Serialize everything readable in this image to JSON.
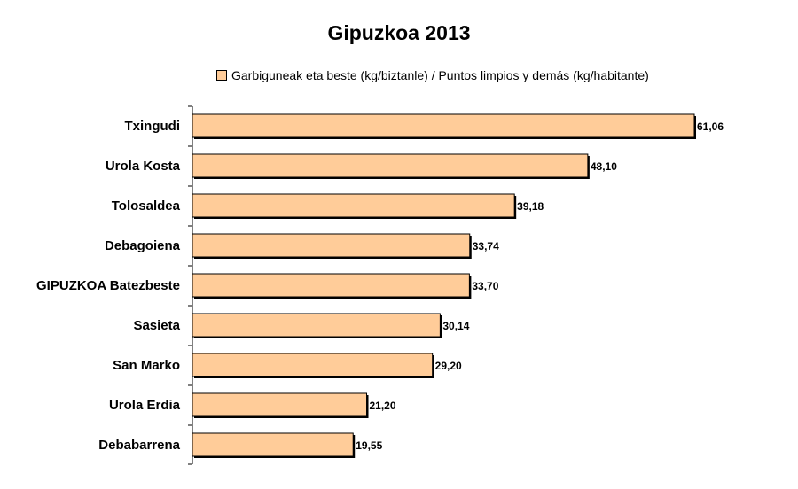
{
  "chart_data": {
    "type": "bar",
    "orientation": "horizontal",
    "title": "Gipuzkoa 2013",
    "categories": [
      "Txingudi",
      "Urola Kosta",
      "Tolosaldea",
      "Debagoiena",
      "GIPUZKOA Batezbeste",
      "Sasieta",
      "San Marko",
      "Urola Erdia",
      "Debabarrena"
    ],
    "series": [
      {
        "name": "Garbiguneak eta beste (kg/biztanle) / Puntos limpios y demás (kg/habitante)",
        "values": [
          61.06,
          48.1,
          39.18,
          33.74,
          33.7,
          30.14,
          29.2,
          21.2,
          19.55
        ],
        "value_labels": [
          "61,06",
          "48,10",
          "39,18",
          "33,74",
          "33,70",
          "30,14",
          "29,20",
          "21,20",
          "19,55"
        ],
        "color": "#ffcc99"
      }
    ],
    "xlim": [
      0,
      61.06
    ],
    "grid": false,
    "legend_position": "top"
  }
}
